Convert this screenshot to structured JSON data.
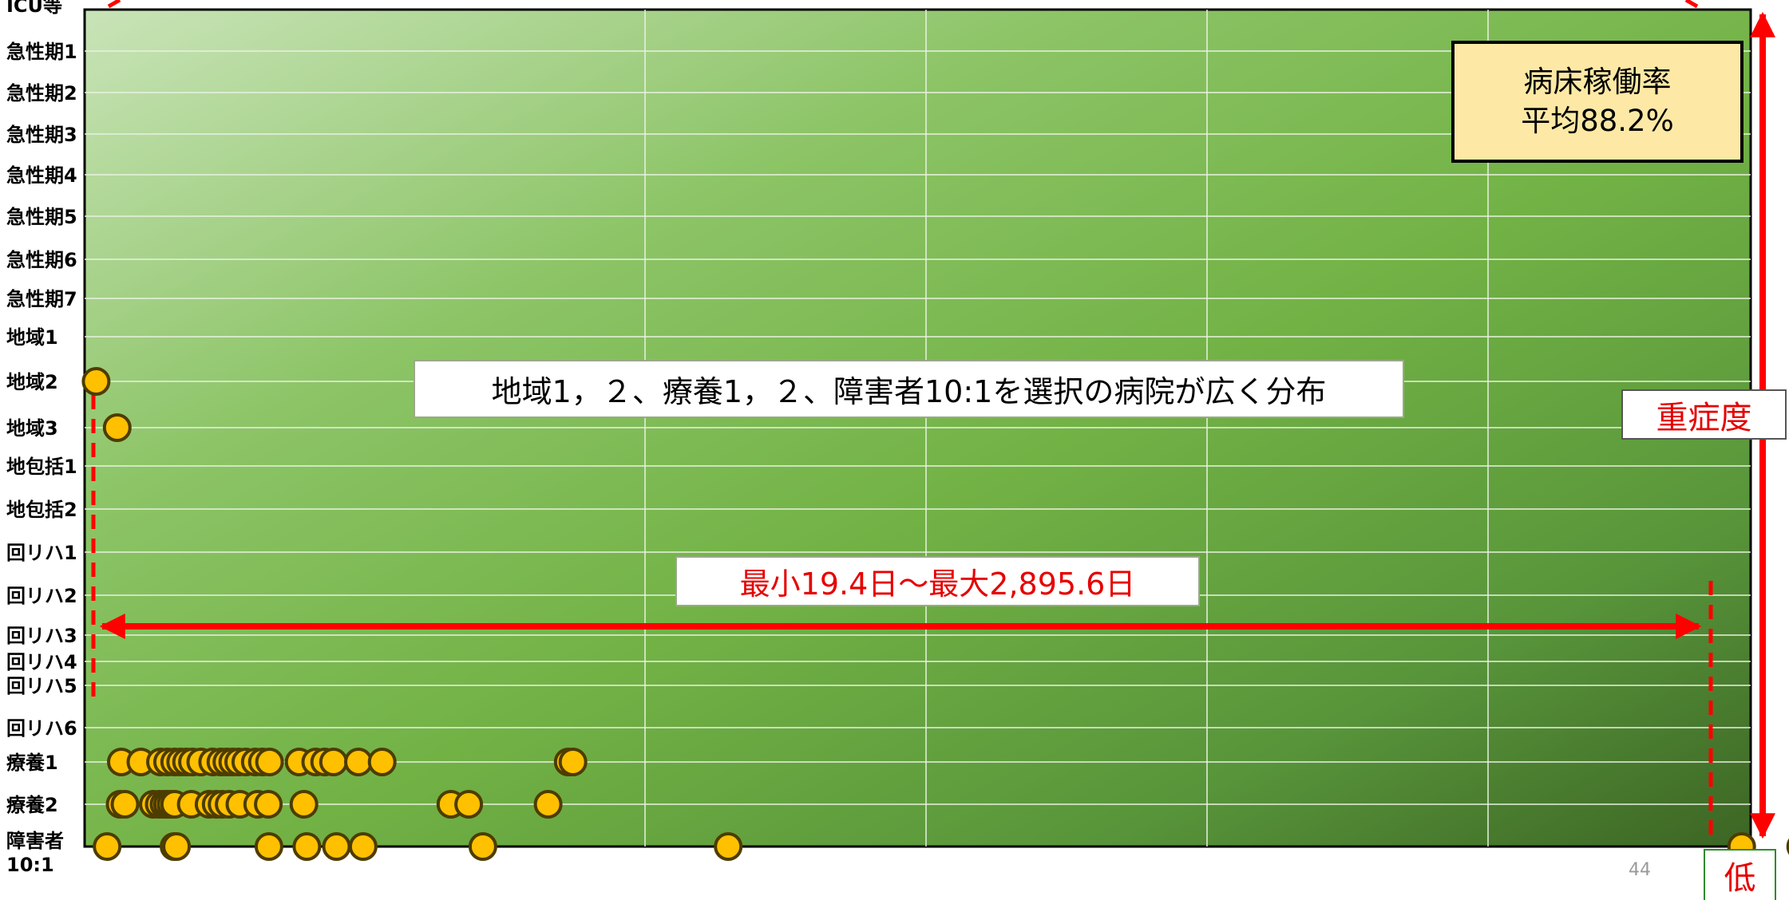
{
  "chart_data": {
    "type": "scatter",
    "title": "",
    "xlabel": "",
    "ylabel": "",
    "y_categories": [
      "ICU等",
      "急性期1",
      "急性期2",
      "急性期3",
      "急性期4",
      "急性期5",
      "急性期6",
      "急性期7",
      "地域1",
      "地域2",
      "地域3",
      "地包括1",
      "地包括2",
      "回リハ1",
      "回リハ2",
      "回リハ3",
      "回リハ4",
      "回リハ5",
      "回リハ6",
      "療養1",
      "療養2",
      "障害者\n10:1"
    ],
    "grid": true,
    "series": [
      {
        "category": "地域2",
        "x": [
          19.4
        ]
      },
      {
        "category": "地域3",
        "x": [
          55
        ]
      },
      {
        "category": "療養1",
        "x": [
          62,
          95,
          128,
          140,
          152,
          162,
          172,
          182,
          196,
          216,
          230,
          240,
          250,
          260,
          272,
          288,
          300,
          312,
          362,
          390,
          405,
          420,
          462,
          502,
          816,
          824
        ]
      },
      {
        "category": "療養2",
        "x": [
          60,
          68,
          116,
          126,
          134,
          140,
          146,
          152,
          180,
          210,
          222,
          232,
          244,
          262,
          292,
          310,
          370,
          618,
          648,
          782
        ]
      },
      {
        "category": "障害者\n10:1",
        "x": [
          38,
          151,
          155,
          311,
          375,
          425,
          470,
          672,
          1086,
          2796,
          2895.6
        ]
      }
    ],
    "colors": {
      "dot_fill": "#ffc000",
      "dot_stroke": "#4d3c00",
      "arrow": "#ff0000",
      "bg_light": "#c9e4b8",
      "bg_mid": "#74b447",
      "bg_dark": "#3e6a26"
    }
  },
  "annotations": {
    "note": "地域1，２、療養1，２、障害者10:1を選択の病院が広く分布",
    "range": "最小19.4日～最大2,895.6日",
    "rate_line1": "病床稼働率",
    "rate_line2": "平均88.2%",
    "severity": "重症度",
    "low": "低",
    "page_number": "44"
  }
}
